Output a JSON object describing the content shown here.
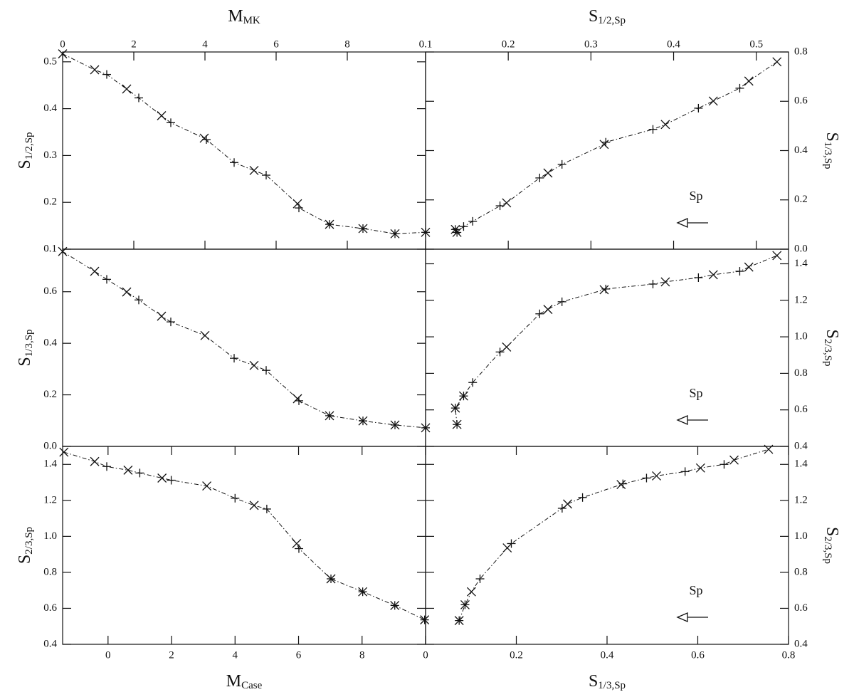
{
  "chart_data": [
    {
      "type": "line",
      "x_label": "M",
      "x_label_sub": "MK",
      "y_label": "S",
      "y_label_sub": "1/2,Sp",
      "x": [
        0,
        0.9,
        1.24,
        1.8,
        2.14,
        2.78,
        3.04,
        3.98,
        4.04,
        4.82,
        5.38,
        5.72,
        6.6,
        6.64,
        7.5,
        8.44,
        9.34,
        10.2
      ],
      "values": [
        0.517,
        0.483,
        0.473,
        0.442,
        0.423,
        0.385,
        0.37,
        0.337,
        0.334,
        0.285,
        0.268,
        0.258,
        0.197,
        0.188,
        0.153,
        0.144,
        0.133,
        0.136
      ],
      "markers": [
        "x",
        "x",
        "+",
        "x",
        "+",
        "x",
        "+",
        "x",
        "+",
        "+",
        "x",
        "+",
        "x",
        "+",
        "*",
        "*",
        "*",
        "*"
      ],
      "xlim": [
        0,
        10.2
      ],
      "xticks": [
        0,
        2,
        4,
        6,
        8
      ],
      "ylim": [
        0.1,
        0.521
      ],
      "yticks": [
        0.1,
        0.2,
        0.3,
        0.4,
        0.5
      ],
      "color": "#111111"
    },
    {
      "type": "line",
      "x_label": "S",
      "x_label_sub": "1/2,Sp",
      "y_label": "S",
      "y_label_sub": "1/3,Sp",
      "annotation": "Sp",
      "x": [
        0.136,
        0.138,
        0.146,
        0.157,
        0.19,
        0.198,
        0.238,
        0.248,
        0.265,
        0.316,
        0.318,
        0.375,
        0.39,
        0.43,
        0.448,
        0.48,
        0.491,
        0.525
      ],
      "values": [
        0.08,
        0.068,
        0.092,
        0.113,
        0.176,
        0.188,
        0.289,
        0.309,
        0.344,
        0.425,
        0.434,
        0.486,
        0.506,
        0.572,
        0.601,
        0.653,
        0.682,
        0.76
      ],
      "markers": [
        "*",
        "*",
        "+",
        "+",
        "+",
        "x",
        "+",
        "x",
        "+",
        "x",
        "+",
        "+",
        "x",
        "+",
        "x",
        "+",
        "x",
        "x"
      ],
      "xlim": [
        0.1,
        0.539
      ],
      "xticks": [
        0.1,
        0.2,
        0.3,
        0.4,
        0.5
      ],
      "ylim": [
        0,
        0.8
      ],
      "yticks": [
        {
          "value": 0,
          "label": "0.0"
        },
        0.2,
        0.4,
        0.6,
        0.8
      ],
      "color": "#111111"
    },
    {
      "type": "line",
      "y_label": "S",
      "y_label_sub": "1/3,Sp",
      "x": [
        0,
        0.9,
        1.24,
        1.8,
        2.14,
        2.78,
        3.04,
        4.0,
        4.82,
        5.38,
        5.72,
        6.6,
        6.64,
        7.5,
        8.44,
        9.34,
        10.2
      ],
      "values": [
        0.756,
        0.679,
        0.648,
        0.599,
        0.568,
        0.505,
        0.483,
        0.43,
        0.342,
        0.314,
        0.295,
        0.185,
        0.177,
        0.119,
        0.099,
        0.083,
        0.072
      ],
      "markers": [
        "x",
        "x",
        "+",
        "x",
        "+",
        "x",
        "+",
        "x",
        "+",
        "x",
        "+",
        "x",
        "+",
        "*",
        "*",
        "*",
        "*"
      ],
      "xlim": [
        0,
        10.2
      ],
      "ylim": [
        0,
        0.765
      ],
      "yticks": [
        {
          "value": 0,
          "label": "0.0"
        },
        0.2,
        0.4,
        0.6
      ],
      "color": "#111111"
    },
    {
      "type": "line",
      "y_label": "S",
      "y_label_sub": "2/3,Sp",
      "annotation": "Sp",
      "x": [
        0.138,
        0.136,
        0.146,
        0.157,
        0.19,
        0.198,
        0.238,
        0.248,
        0.265,
        0.316,
        0.318,
        0.375,
        0.39,
        0.43,
        0.448,
        0.48,
        0.491,
        0.525
      ],
      "values": [
        0.52,
        0.61,
        0.676,
        0.75,
        0.917,
        0.944,
        1.126,
        1.15,
        1.192,
        1.258,
        1.262,
        1.289,
        1.301,
        1.324,
        1.34,
        1.359,
        1.382,
        1.445
      ],
      "markers": [
        "*",
        "*",
        "*",
        "+",
        "+",
        "x",
        "+",
        "x",
        "+",
        "x",
        "+",
        "+",
        "x",
        "+",
        "x",
        "+",
        "x",
        "x"
      ],
      "xlim": [
        0.1,
        0.539
      ],
      "ylim": [
        0.4,
        1.48
      ],
      "yticks": [
        0.4,
        0.6,
        0.8,
        {
          "value": 1,
          "label": "1.0"
        },
        1.2,
        1.4
      ],
      "color": "#111111"
    },
    {
      "type": "line",
      "x_label": "M",
      "x_label_sub": "Case",
      "y_label": "S",
      "y_label_sub": "2/3,Sp",
      "x": [
        -1.39,
        -0.42,
        -0.04,
        0.63,
        1.0,
        1.7,
        1.99,
        3.11,
        4.0,
        4.6,
        5.0,
        5.94,
        6.01,
        7.02,
        8.02,
        9.03,
        9.97
      ],
      "values": [
        1.468,
        1.416,
        1.388,
        1.368,
        1.352,
        1.324,
        1.312,
        1.28,
        1.212,
        1.172,
        1.152,
        0.96,
        0.932,
        0.764,
        0.692,
        0.616,
        0.536
      ],
      "markers": [
        "x",
        "x",
        "+",
        "x",
        "+",
        "x",
        "+",
        "x",
        "+",
        "x",
        "+",
        "x",
        "+",
        "*",
        "*",
        "*",
        "*"
      ],
      "xlim": [
        -1.43,
        10
      ],
      "xticks": [
        0,
        2,
        4,
        6,
        8
      ],
      "ylim": [
        0.4,
        1.5
      ],
      "yticks": [
        0.4,
        0.6,
        0.8,
        {
          "value": 1,
          "label": "1.0"
        },
        1.2,
        1.4
      ],
      "color": "#111111"
    },
    {
      "type": "line",
      "x_label": "S",
      "x_label_sub": "1/3,Sp",
      "y_label": "S",
      "y_label_sub": "2/3,Sp",
      "annotation": "Sp",
      "x": [
        0.074,
        0.087,
        0.101,
        0.12,
        0.18,
        0.189,
        0.301,
        0.313,
        0.346,
        0.431,
        0.435,
        0.487,
        0.509,
        0.572,
        0.606,
        0.658,
        0.68,
        0.756
      ],
      "values": [
        0.532,
        0.62,
        0.692,
        0.764,
        0.936,
        0.96,
        1.156,
        1.18,
        1.216,
        1.288,
        1.292,
        1.324,
        1.336,
        1.36,
        1.38,
        1.4,
        1.424,
        1.484
      ],
      "markers": [
        "*",
        "*",
        "x",
        "+",
        "x",
        "+",
        "+",
        "x",
        "+",
        "x",
        "+",
        "+",
        "x",
        "+",
        "x",
        "+",
        "x",
        "x"
      ],
      "xlim": [
        0,
        0.8
      ],
      "xticks": [
        0,
        0.2,
        0.4,
        0.6,
        0.8
      ],
      "ylim": [
        0.4,
        1.5
      ],
      "yticks": [
        0.4,
        0.6,
        0.8,
        {
          "value": 1,
          "label": "1.0"
        },
        1.2,
        1.4
      ],
      "color": "#111111"
    }
  ]
}
